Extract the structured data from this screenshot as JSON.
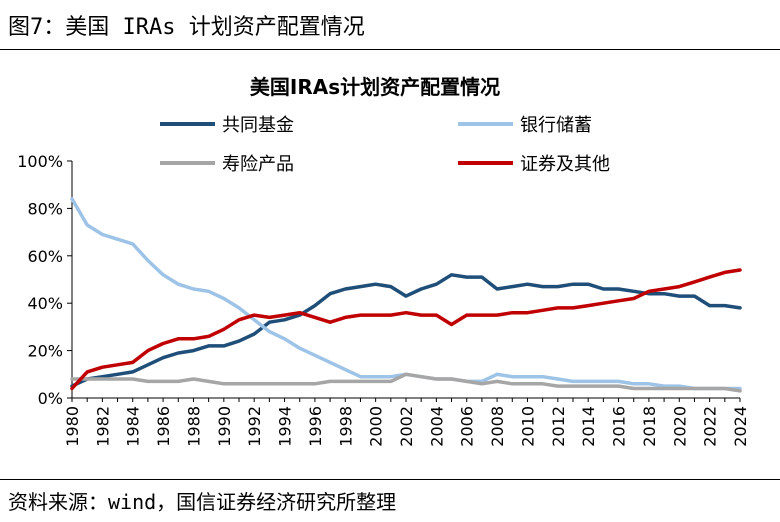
{
  "figure_label": "图7：美国 IRAs 计划资产配置情况",
  "source_note": "资料来源：wind，国信证券经济研究所整理",
  "chart_data": {
    "type": "line",
    "title": "美国IRAs计划资产配置情况",
    "xlabel": "",
    "ylabel": "",
    "x": [
      1980,
      1981,
      1982,
      1983,
      1984,
      1985,
      1986,
      1987,
      1988,
      1989,
      1990,
      1991,
      1992,
      1993,
      1994,
      1995,
      1996,
      1997,
      1998,
      1999,
      2000,
      2001,
      2002,
      2003,
      2004,
      2005,
      2006,
      2007,
      2008,
      2009,
      2010,
      2011,
      2012,
      2013,
      2014,
      2015,
      2016,
      2017,
      2018,
      2019,
      2020,
      2021,
      2022,
      2023,
      2024
    ],
    "x_tick_labels": [
      "1980",
      "1982",
      "1984",
      "1986",
      "1988",
      "1990",
      "1992",
      "1994",
      "1996",
      "1998",
      "2000",
      "2002",
      "2004",
      "2006",
      "2008",
      "2010",
      "2012",
      "2014",
      "2016",
      "2018",
      "2020",
      "2022",
      "2024"
    ],
    "y_ticks": [
      "0%",
      "20%",
      "40%",
      "60%",
      "80%",
      "100%"
    ],
    "ylim": [
      0,
      100
    ],
    "grid": false,
    "legend_position": "top",
    "series": [
      {
        "name": "共同基金",
        "color": "#1f4e79",
        "values": [
          5,
          8,
          9,
          10,
          11,
          14,
          17,
          19,
          20,
          22,
          22,
          24,
          27,
          32,
          33,
          35,
          39,
          44,
          46,
          47,
          48,
          47,
          43,
          46,
          48,
          52,
          51,
          51,
          46,
          47,
          48,
          47,
          47,
          48,
          48,
          46,
          46,
          45,
          44,
          44,
          43,
          43,
          39,
          39,
          38
        ]
      },
      {
        "name": "银行储蓄",
        "color": "#9dc3e6",
        "values": [
          84,
          73,
          69,
          67,
          65,
          58,
          52,
          48,
          46,
          45,
          42,
          38,
          33,
          28,
          25,
          21,
          18,
          15,
          12,
          9,
          9,
          9,
          10,
          9,
          8,
          8,
          7,
          7,
          10,
          9,
          9,
          9,
          8,
          7,
          7,
          7,
          7,
          6,
          6,
          5,
          5,
          4,
          4,
          4,
          4
        ]
      },
      {
        "name": "寿险产品",
        "color": "#a6a6a6",
        "values": [
          8,
          8,
          8,
          8,
          8,
          7,
          7,
          7,
          8,
          7,
          6,
          6,
          6,
          6,
          6,
          6,
          6,
          7,
          7,
          7,
          7,
          7,
          10,
          9,
          8,
          8,
          7,
          6,
          7,
          6,
          6,
          6,
          5,
          5,
          5,
          5,
          5,
          4,
          4,
          4,
          4,
          4,
          4,
          4,
          3
        ]
      },
      {
        "name": "证券及其他",
        "color": "#c00000",
        "values": [
          4,
          11,
          13,
          14,
          15,
          20,
          23,
          25,
          25,
          26,
          29,
          33,
          35,
          34,
          35,
          36,
          34,
          32,
          34,
          35,
          35,
          35,
          36,
          35,
          35,
          31,
          35,
          35,
          35,
          36,
          36,
          37,
          38,
          38,
          39,
          40,
          41,
          42,
          45,
          46,
          47,
          49,
          51,
          53,
          54
        ]
      }
    ]
  }
}
